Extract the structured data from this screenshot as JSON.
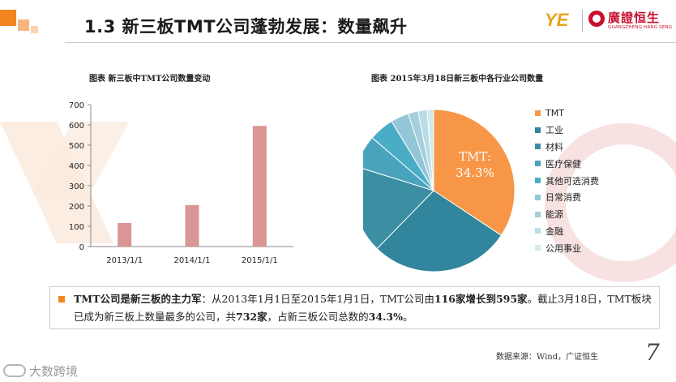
{
  "header": {
    "title": "1.3 新三板TMT公司蓬勃发展：数量飙升",
    "brand_mark": "YE",
    "brand_cn": "廣證恒生",
    "brand_en": "GUANGZHENG HANG SENG"
  },
  "left_chart": {
    "caption": "图表 新三板中TMT公司数量变动"
  },
  "right_chart": {
    "caption": "图表 2015年3月18日新三板中各行业公司数量",
    "pie_label_name": "TMT:",
    "pie_label_value": "34.3%"
  },
  "chart_data": [
    {
      "type": "bar",
      "categories": [
        "2013/1/1",
        "2014/1/1",
        "2015/1/1"
      ],
      "values": [
        116,
        205,
        595
      ],
      "ylim": [
        0,
        700
      ],
      "yticks": [
        0,
        100,
        200,
        300,
        400,
        500,
        600,
        700
      ],
      "grid": false,
      "color": "#d99694",
      "title": "图表 新三板中TMT公司数量变动"
    },
    {
      "type": "pie",
      "title": "图表 2015年3月18日新三板中各行业公司数量",
      "legend_position": "right",
      "slices": [
        {
          "label": "TMT",
          "value": 34.3,
          "color": "#f79646"
        },
        {
          "label": "工业",
          "value": 28.0,
          "color": "#31859c"
        },
        {
          "label": "材料",
          "value": 17.5,
          "color": "#3c8ea3"
        },
        {
          "label": "医疗保健",
          "value": 6.5,
          "color": "#4aa3bd"
        },
        {
          "label": "其他可选消费",
          "value": 5.0,
          "color": "#4bacc6"
        },
        {
          "label": "日常消费",
          "value": 3.6,
          "color": "#93c6d6"
        },
        {
          "label": "能源",
          "value": 2.0,
          "color": "#a5cfdb"
        },
        {
          "label": "金融",
          "value": 1.8,
          "color": "#b7dde8"
        },
        {
          "label": "公用事业",
          "value": 1.3,
          "color": "#d3e9f0"
        }
      ]
    }
  ],
  "summary": {
    "lead": "TMT公司是新三板的主力军",
    "part1": "：从2013年1月1日至2015年1月1日，TMT公司由",
    "highlight1": "116家增长到595家",
    "part2": "。截止3月18日，TMT板块已成为新三板上数量最多的公司，共",
    "highlight2": "732家",
    "part3": "，占新三板公司总数的",
    "highlight3": "34.3%",
    "part4": "。"
  },
  "footer": {
    "source": "数据来源：Wind，广证恒生",
    "page_number": "7",
    "watermark": "大数跨境"
  }
}
